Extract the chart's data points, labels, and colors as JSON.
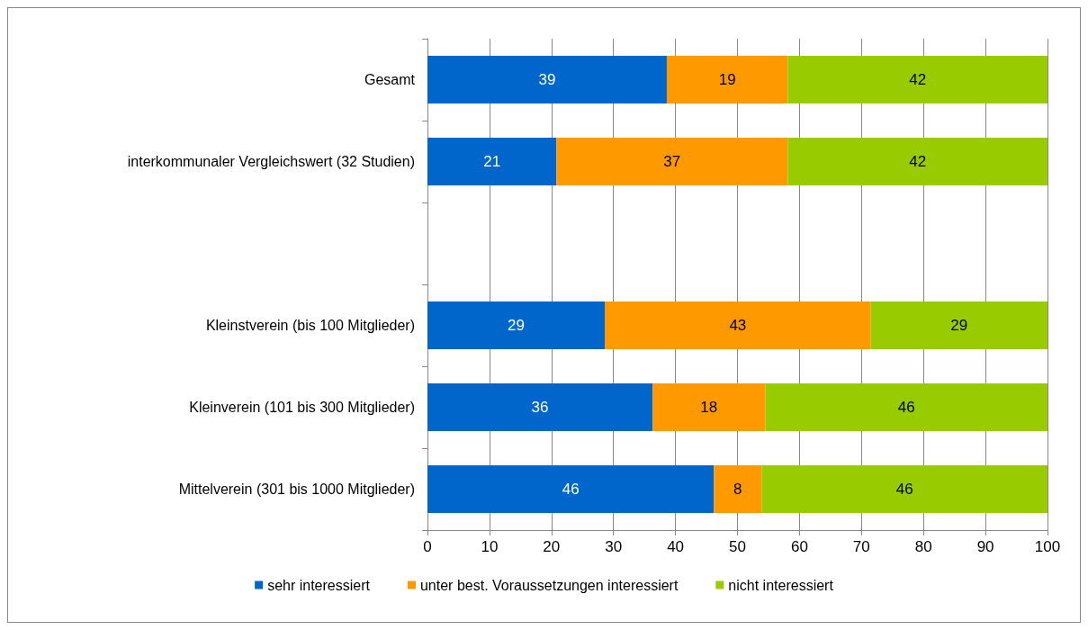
{
  "chart_data": {
    "type": "bar",
    "orientation": "horizontal",
    "stacked": true,
    "categories": [
      "Gesamt",
      "interkommunaler Vergleichswert (32 Studien)",
      null,
      "Kleinstverein (bis 100 Mitglieder)",
      "Kleinverein (101 bis 300 Mitglieder)",
      "Mittelverein (301 bis 1000 Mitglieder)"
    ],
    "series": [
      {
        "name": "sehr interessiert",
        "color": "#0066cc",
        "values": [
          38.6,
          20.8,
          null,
          28.6,
          36.3,
          46.2
        ],
        "value_labels": [
          "39",
          "21",
          null,
          "29",
          "36",
          "46"
        ]
      },
      {
        "name": "unter best. Voraussetzungen interessiert",
        "color": "#ff9900",
        "values": [
          19.5,
          37.3,
          null,
          42.9,
          18.2,
          7.7
        ],
        "value_labels": [
          "19",
          "37",
          null,
          "43",
          "18",
          "8"
        ]
      },
      {
        "name": "nicht interessiert",
        "color": "#99cc00",
        "values": [
          41.9,
          41.9,
          null,
          28.5,
          45.5,
          46.1
        ],
        "value_labels": [
          "42",
          "42",
          null,
          "29",
          "46",
          "46"
        ]
      }
    ],
    "xlim": [
      0,
      100
    ],
    "xticks": [
      0,
      10,
      20,
      30,
      40,
      50,
      60,
      70,
      80,
      90,
      100
    ],
    "grid": "x",
    "legend": "bottom"
  }
}
